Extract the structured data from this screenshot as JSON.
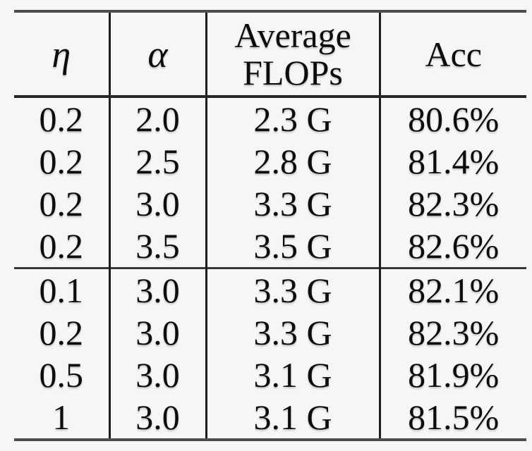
{
  "table": {
    "header": {
      "eta": "η",
      "alpha": "α",
      "avg_flops_line1": "Average",
      "avg_flops_line2": "FLOPs",
      "acc": "Acc"
    },
    "groups": [
      {
        "rows": [
          [
            "0.2",
            "2.0",
            "2.3 G",
            "80.6%"
          ],
          [
            "0.2",
            "2.5",
            "2.8 G",
            "81.4%"
          ],
          [
            "0.2",
            "3.0",
            "3.3 G",
            "82.3%"
          ],
          [
            "0.2",
            "3.5",
            "3.5 G",
            "82.6%"
          ]
        ]
      },
      {
        "rows": [
          [
            "0.1",
            "3.0",
            "3.3 G",
            "82.1%"
          ],
          [
            "0.2",
            "3.0",
            "3.3 G",
            "82.3%"
          ],
          [
            "0.5",
            "3.0",
            "3.1 G",
            "81.9%"
          ],
          [
            "1",
            "3.0",
            "3.1 G",
            "81.5%"
          ]
        ]
      }
    ]
  },
  "chart_data": {
    "type": "table",
    "title": "",
    "columns": [
      "η",
      "α",
      "Average FLOPs",
      "Acc"
    ],
    "rows": [
      [
        "0.2",
        "2.0",
        "2.3 G",
        "80.6%"
      ],
      [
        "0.2",
        "2.5",
        "2.8 G",
        "81.4%"
      ],
      [
        "0.2",
        "3.0",
        "3.3 G",
        "82.3%"
      ],
      [
        "0.2",
        "3.5",
        "3.5 G",
        "82.6%"
      ],
      [
        "0.1",
        "3.0",
        "3.3 G",
        "82.1%"
      ],
      [
        "0.2",
        "3.0",
        "3.3 G",
        "82.3%"
      ],
      [
        "0.5",
        "3.0",
        "3.1 G",
        "81.9%"
      ],
      [
        "1",
        "3.0",
        "3.1 G",
        "81.5%"
      ]
    ],
    "group_break_after_row": 4
  },
  "colors": {
    "background": "#f6f6f4",
    "text": "#0d0d0d",
    "outer_rule": "#4c4c4c",
    "header_rule": "#262626",
    "group_rule": "#383838",
    "vertical_rule": "#1d1d1d"
  }
}
